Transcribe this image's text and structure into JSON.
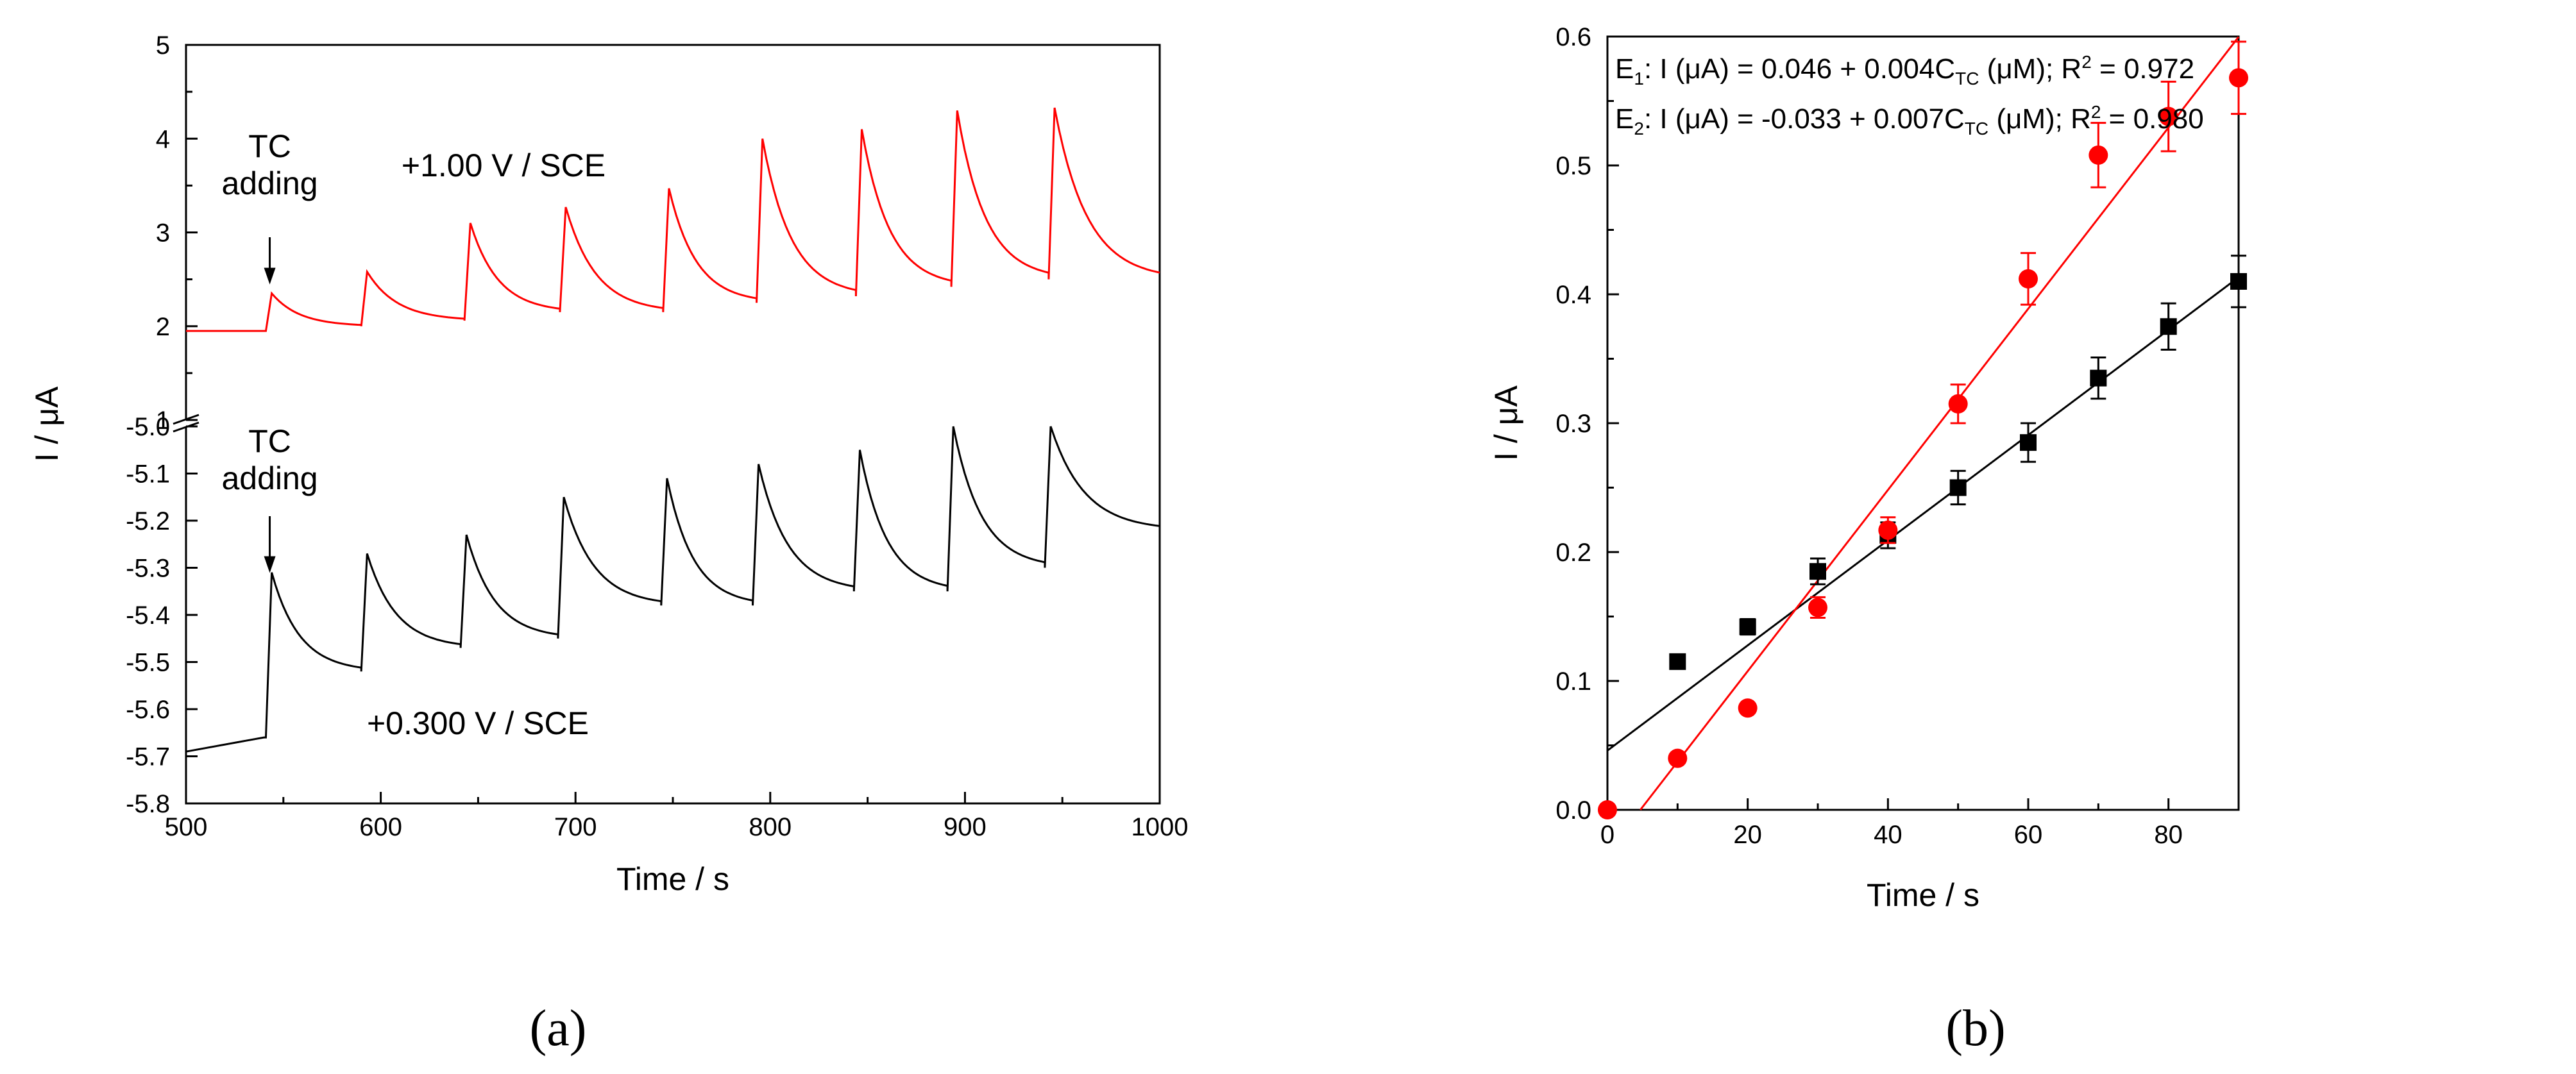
{
  "figure": {
    "panel_a_label": "(a)",
    "panel_b_label": "(b)"
  },
  "chart_data": [
    {
      "type": "line",
      "panel": "(a)",
      "xlabel": "Time / s",
      "ylabel": "I / μA",
      "xlim": [
        500,
        1000
      ],
      "x_ticks": [
        "500",
        "600",
        "700",
        "800",
        "900",
        "1000"
      ],
      "axis_break": true,
      "upper_ylim": [
        1,
        5
      ],
      "upper_y_ticks": [
        "1",
        "2",
        "3",
        "4",
        "5"
      ],
      "lower_ylim": [
        -5.8,
        -5.0
      ],
      "lower_y_ticks": [
        "-5.0",
        "-5.1",
        "-5.2",
        "-5.3",
        "-5.4",
        "-5.5",
        "-5.6",
        "-5.7",
        "-5.8"
      ],
      "annotations": [
        {
          "line1": "TC",
          "line2": "adding",
          "arrow_x": 543,
          "arrow_target_y": 2.35,
          "series": "red"
        },
        {
          "line1": "TC",
          "line2": "adding",
          "arrow_x": 543,
          "arrow_target_y": -5.33,
          "series": "black"
        }
      ],
      "series": [
        {
          "name": "+1.00 V / SCE",
          "color": "#ff0000",
          "baseline": 1.95,
          "injection_times": [
            541,
            590,
            643,
            692,
            745,
            793,
            844,
            893,
            943
          ],
          "peaks": [
            2.35,
            2.58,
            3.1,
            3.27,
            3.47,
            4.0,
            4.1,
            4.3,
            4.33
          ],
          "troughs": [
            1.95,
            2.0,
            2.06,
            2.15,
            2.15,
            2.25,
            2.32,
            2.42,
            2.5
          ],
          "end_value": 2.5
        },
        {
          "name": "+0.300 V / SCE",
          "color": "#000000",
          "baseline_start": -5.69,
          "baseline_end": -5.66,
          "injection_times": [
            541,
            590,
            641,
            691,
            744,
            791,
            843,
            891,
            941
          ],
          "peaks": [
            -5.31,
            -5.27,
            -5.23,
            -5.15,
            -5.11,
            -5.08,
            -5.05,
            -5.0,
            -5.0
          ],
          "troughs": [
            -5.66,
            -5.52,
            -5.47,
            -5.45,
            -5.38,
            -5.38,
            -5.35,
            -5.35,
            -5.3
          ],
          "end_value": -5.22
        }
      ]
    },
    {
      "type": "scatter",
      "panel": "(b)",
      "xlabel": "Time / s",
      "ylabel": "I / μA",
      "xlim": [
        0,
        90
      ],
      "ylim": [
        0,
        0.6
      ],
      "x_ticks": [
        "0",
        "20",
        "40",
        "60",
        "80"
      ],
      "y_ticks": [
        "0.0",
        "0.1",
        "0.2",
        "0.3",
        "0.4",
        "0.5",
        "0.6"
      ],
      "series": [
        {
          "name": "E1",
          "label_prefix": "E",
          "label_sub": "1",
          "eq_text": ": I (μA) = 0.046 + 0.004C",
          "eq_sub": "TC",
          "eq_tail": " (μM);  R",
          "r2_sup": "2",
          "r2_value": " = 0.972",
          "color": "#000000",
          "marker": "square",
          "x": [
            10,
            20,
            30,
            40,
            50,
            60,
            70,
            80,
            90
          ],
          "y": [
            0.115,
            0.142,
            0.185,
            0.213,
            0.25,
            0.285,
            0.335,
            0.375,
            0.41
          ],
          "err": [
            0,
            0.006,
            0.01,
            0.01,
            0.013,
            0.015,
            0.016,
            0.018,
            0.02
          ],
          "fit": {
            "intercept": 0.046,
            "slope": 0.00408
          }
        },
        {
          "name": "E2",
          "label_prefix": "E",
          "label_sub": "2",
          "eq_text": ": I (μA) = -0.033 + 0.007C",
          "eq_sub": "TC",
          "eq_tail": " (μM); R",
          "r2_sup": "2",
          "r2_value": " = 0.980",
          "color": "#ff0000",
          "marker": "circle",
          "x": [
            0,
            10,
            20,
            30,
            40,
            50,
            60,
            70,
            80,
            90
          ],
          "y": [
            0.0,
            0.04,
            0.079,
            0.157,
            0.217,
            0.315,
            0.412,
            0.508,
            0.538,
            0.568
          ],
          "err": [
            0,
            0,
            0,
            0.008,
            0.01,
            0.015,
            0.02,
            0.025,
            0.027,
            0.028
          ],
          "fit": {
            "intercept": -0.033,
            "slope": 0.00703
          }
        }
      ]
    }
  ]
}
